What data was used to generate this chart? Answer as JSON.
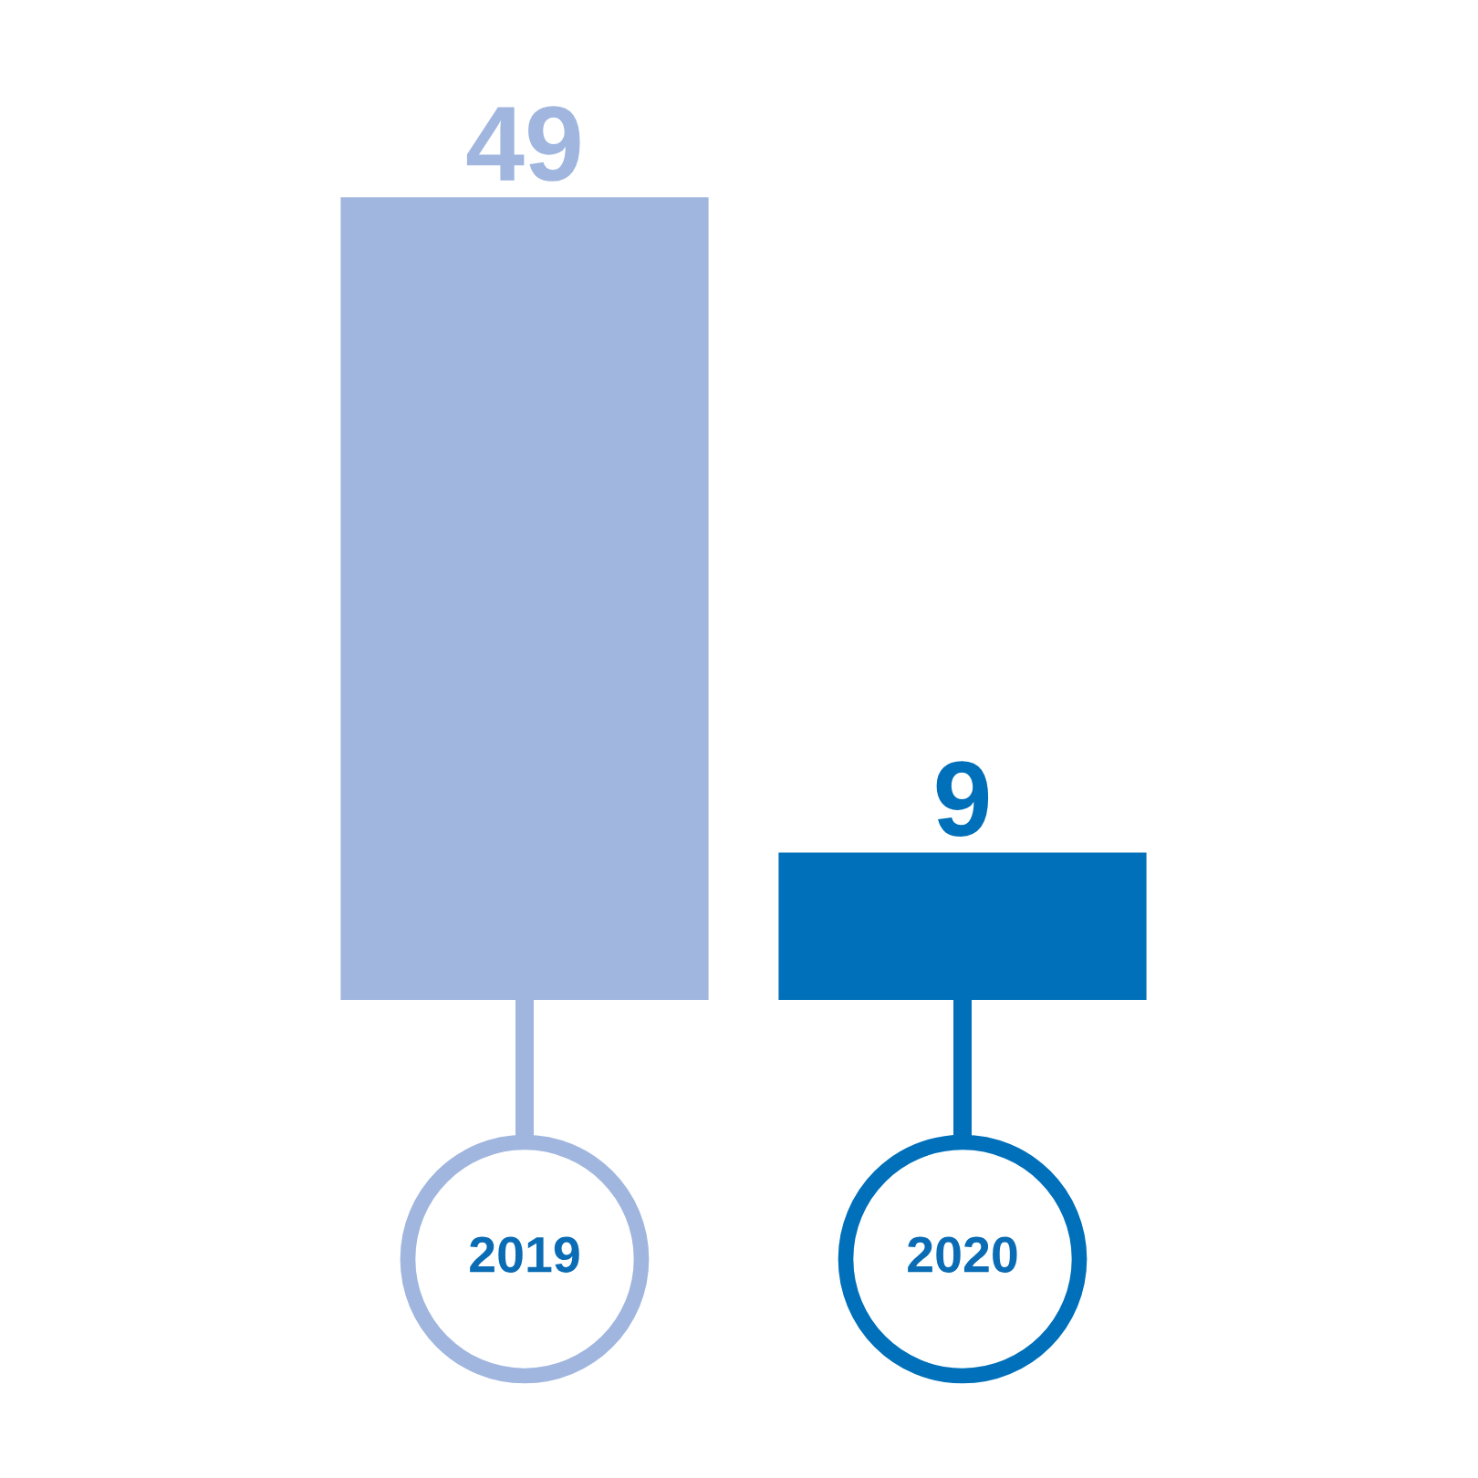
{
  "chart_data": {
    "type": "bar",
    "categories": [
      "2019",
      "2020"
    ],
    "values": [
      49,
      9
    ],
    "colors": [
      "#a0b6df",
      "#0070ba"
    ],
    "data_labels": true
  }
}
